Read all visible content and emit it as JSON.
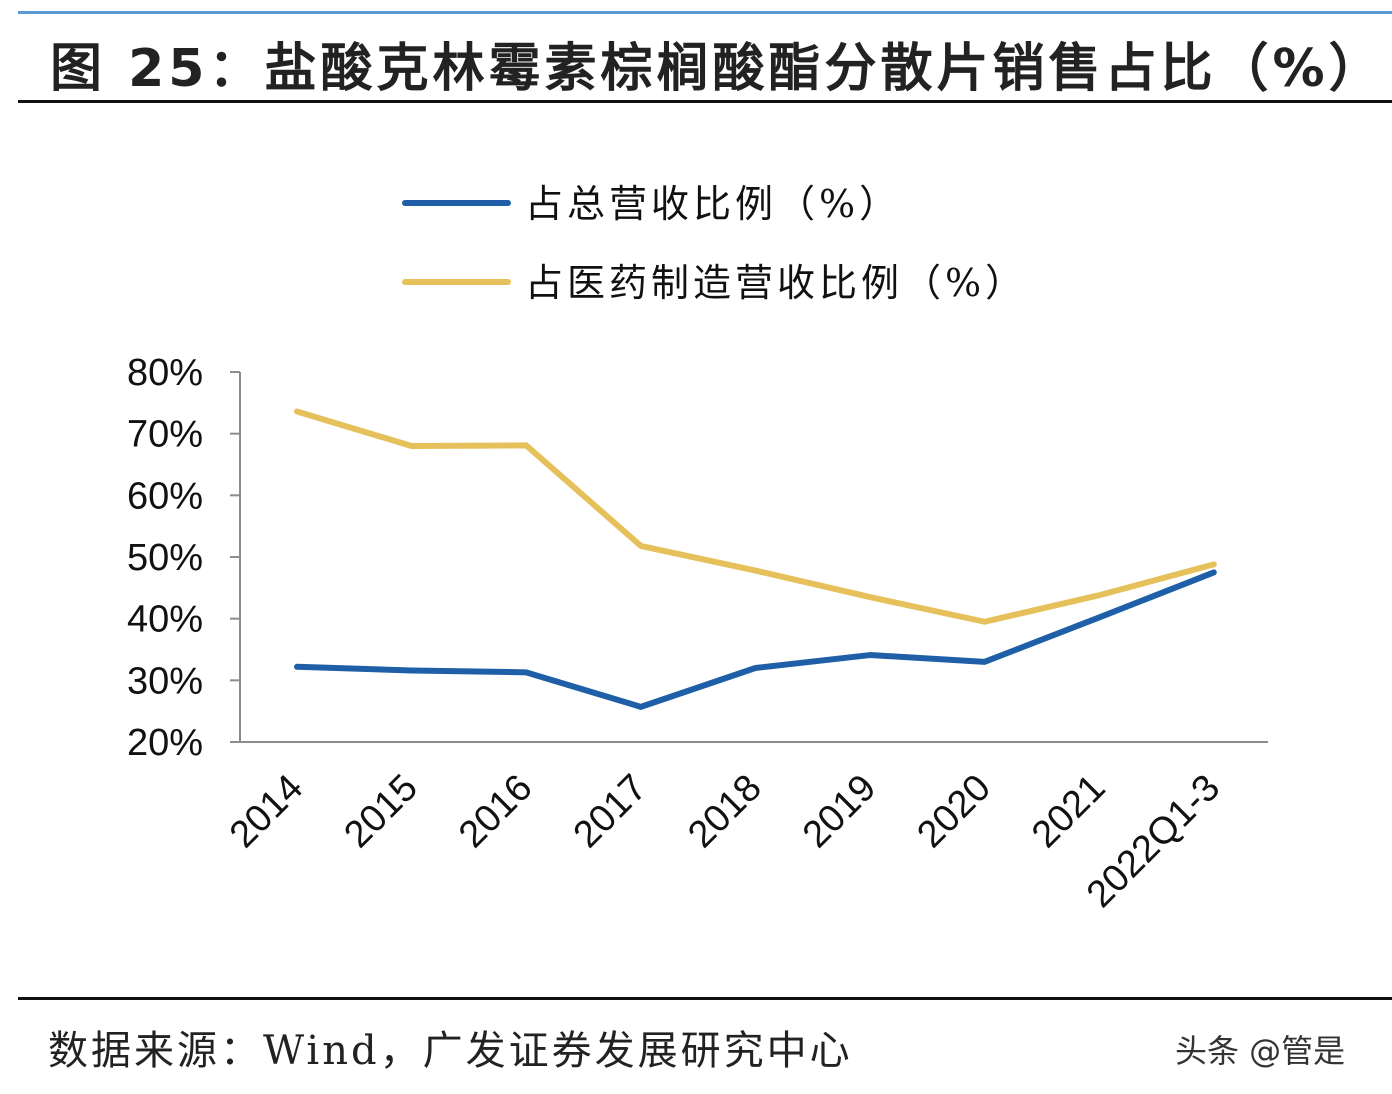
{
  "title": "图 25：盐酸克林霉素棕榈酸酯分散片销售占比（%）",
  "source": "数据来源：Wind，广发证券发展研究中心",
  "watermark": "头条 @管是",
  "chart_data": {
    "type": "line",
    "categories": [
      "2014",
      "2015",
      "2016",
      "2017",
      "2018",
      "2019",
      "2020",
      "2021",
      "2022Q1-3"
    ],
    "series": [
      {
        "name": "占总营收比例（%）",
        "color": "#1f5fa8",
        "values": [
          32.2,
          31.6,
          31.3,
          25.7,
          32.0,
          34.1,
          33.0,
          40.2,
          47.5
        ]
      },
      {
        "name": "占医药制造营收比例（%）",
        "color": "#e6c05a",
        "values": [
          73.6,
          68.0,
          68.1,
          51.8,
          47.8,
          43.5,
          39.5,
          43.8,
          48.8
        ]
      }
    ],
    "ylim": [
      20,
      80
    ],
    "yticks": [
      "80%",
      "70%",
      "60%",
      "50%",
      "40%",
      "30%",
      "20%"
    ],
    "ytick_values": [
      80,
      70,
      60,
      50,
      40,
      30,
      20
    ],
    "grid": false,
    "legend": "top"
  }
}
